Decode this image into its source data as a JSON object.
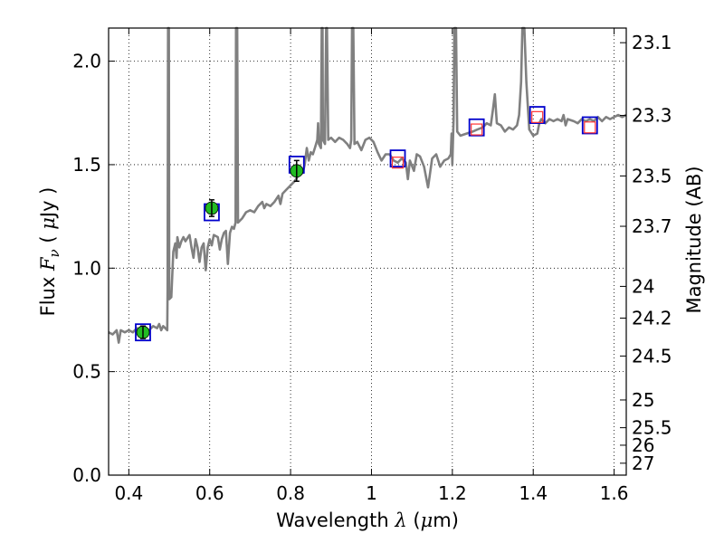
{
  "chart_data": {
    "type": "line",
    "xlabel_text": "Wavelength",
    "xlabel_symbol": "λ",
    "xlabel_unit_open": "(",
    "xlabel_unit_mu": "μ",
    "xlabel_unit_rest": "m)",
    "ylabel_text": "Flux",
    "ylabel_symbol": "F",
    "ylabel_sub": "ν",
    "ylabel_unit_open": "(",
    "ylabel_unit_mu": "μ",
    "ylabel_unit_rest": "Jy",
    "ylabel_unit_close": ")",
    "y2label": "Magnitude (AB)",
    "xlim": [
      0.35,
      1.63
    ],
    "ylim": [
      0.0,
      2.16
    ],
    "grid": true,
    "x_ticks": [
      {
        "v": 0.4,
        "label": "0.4"
      },
      {
        "v": 0.6,
        "label": "0.6"
      },
      {
        "v": 0.8,
        "label": "0.8"
      },
      {
        "v": 1.0,
        "label": "1"
      },
      {
        "v": 1.2,
        "label": "1.2"
      },
      {
        "v": 1.4,
        "label": "1.4"
      },
      {
        "v": 1.6,
        "label": "1.6"
      }
    ],
    "y_ticks": [
      {
        "v": 0.0,
        "label": "0.0"
      },
      {
        "v": 0.5,
        "label": "0.5"
      },
      {
        "v": 1.0,
        "label": "1.0"
      },
      {
        "v": 1.5,
        "label": "1.5"
      },
      {
        "v": 2.0,
        "label": "2.0"
      }
    ],
    "mag_ticks": [
      {
        "mag": 23.1,
        "label": "23.1"
      },
      {
        "mag": 23.3,
        "label": "23.3"
      },
      {
        "mag": 23.5,
        "label": "23.5"
      },
      {
        "mag": 23.7,
        "label": "23.7"
      },
      {
        "mag": 24.0,
        "label": "24"
      },
      {
        "mag": 24.2,
        "label": "24.2"
      },
      {
        "mag": 24.5,
        "label": "24.5"
      },
      {
        "mag": 25.0,
        "label": "25"
      },
      {
        "mag": 25.5,
        "label": "25.5"
      },
      {
        "mag": 26.0,
        "label": "26"
      },
      {
        "mag": 27.0,
        "label": "27"
      }
    ],
    "spectrum": {
      "color": "#808080",
      "points": [
        [
          0.35,
          0.69
        ],
        [
          0.36,
          0.68
        ],
        [
          0.37,
          0.7
        ],
        [
          0.375,
          0.64
        ],
        [
          0.38,
          0.7
        ],
        [
          0.39,
          0.69
        ],
        [
          0.4,
          0.7
        ],
        [
          0.41,
          0.69
        ],
        [
          0.42,
          0.71
        ],
        [
          0.43,
          0.7
        ],
        [
          0.44,
          0.71
        ],
        [
          0.45,
          0.7
        ],
        [
          0.46,
          0.72
        ],
        [
          0.47,
          0.71
        ],
        [
          0.475,
          0.73
        ],
        [
          0.48,
          0.7
        ],
        [
          0.485,
          0.72
        ],
        [
          0.49,
          0.71
        ],
        [
          0.495,
          0.7
        ],
        [
          0.496,
          0.9
        ],
        [
          0.497,
          2.16
        ],
        [
          0.499,
          2.16
        ],
        [
          0.5,
          0.85
        ],
        [
          0.505,
          0.86
        ],
        [
          0.51,
          1.08
        ],
        [
          0.515,
          1.12
        ],
        [
          0.518,
          1.05
        ],
        [
          0.52,
          1.15
        ],
        [
          0.525,
          1.1
        ],
        [
          0.53,
          1.13
        ],
        [
          0.535,
          1.15
        ],
        [
          0.54,
          1.13
        ],
        [
          0.55,
          1.16
        ],
        [
          0.555,
          1.1
        ],
        [
          0.56,
          1.05
        ],
        [
          0.565,
          1.14
        ],
        [
          0.57,
          1.1
        ],
        [
          0.575,
          1.03
        ],
        [
          0.58,
          1.1
        ],
        [
          0.585,
          1.12
        ],
        [
          0.59,
          0.99
        ],
        [
          0.595,
          1.1
        ],
        [
          0.6,
          1.14
        ],
        [
          0.605,
          1.11
        ],
        [
          0.61,
          1.16
        ],
        [
          0.62,
          1.15
        ],
        [
          0.625,
          1.09
        ],
        [
          0.63,
          1.14
        ],
        [
          0.635,
          1.17
        ],
        [
          0.64,
          1.18
        ],
        [
          0.645,
          1.02
        ],
        [
          0.65,
          1.17
        ],
        [
          0.655,
          1.2
        ],
        [
          0.66,
          1.19
        ],
        [
          0.664,
          1.22
        ],
        [
          0.665,
          2.16
        ],
        [
          0.668,
          2.16
        ],
        [
          0.67,
          1.22
        ],
        [
          0.68,
          1.24
        ],
        [
          0.69,
          1.27
        ],
        [
          0.7,
          1.28
        ],
        [
          0.71,
          1.27
        ],
        [
          0.72,
          1.3
        ],
        [
          0.73,
          1.32
        ],
        [
          0.735,
          1.29
        ],
        [
          0.74,
          1.31
        ],
        [
          0.75,
          1.3
        ],
        [
          0.76,
          1.32
        ],
        [
          0.77,
          1.35
        ],
        [
          0.775,
          1.31
        ],
        [
          0.78,
          1.36
        ],
        [
          0.79,
          1.38
        ],
        [
          0.8,
          1.4
        ],
        [
          0.81,
          1.42
        ],
        [
          0.82,
          1.45
        ],
        [
          0.83,
          1.46
        ],
        [
          0.835,
          1.5
        ],
        [
          0.84,
          1.58
        ],
        [
          0.845,
          1.52
        ],
        [
          0.85,
          1.56
        ],
        [
          0.855,
          1.55
        ],
        [
          0.86,
          1.58
        ],
        [
          0.866,
          1.62
        ],
        [
          0.868,
          1.7
        ],
        [
          0.87,
          1.6
        ],
        [
          0.875,
          1.58
        ],
        [
          0.877,
          2.16
        ],
        [
          0.879,
          2.16
        ],
        [
          0.88,
          1.62
        ],
        [
          0.885,
          1.6
        ],
        [
          0.888,
          2.16
        ],
        [
          0.89,
          2.16
        ],
        [
          0.893,
          1.62
        ],
        [
          0.9,
          1.63
        ],
        [
          0.91,
          1.61
        ],
        [
          0.92,
          1.63
        ],
        [
          0.93,
          1.62
        ],
        [
          0.94,
          1.6
        ],
        [
          0.947,
          1.58
        ],
        [
          0.95,
          1.62
        ],
        [
          0.952,
          2.16
        ],
        [
          0.955,
          2.16
        ],
        [
          0.958,
          1.6
        ],
        [
          0.965,
          1.61
        ],
        [
          0.975,
          1.57
        ],
        [
          0.985,
          1.62
        ],
        [
          0.995,
          1.63
        ],
        [
          1.005,
          1.61
        ],
        [
          1.015,
          1.56
        ],
        [
          1.025,
          1.52
        ],
        [
          1.035,
          1.55
        ],
        [
          1.045,
          1.55
        ],
        [
          1.055,
          1.52
        ],
        [
          1.065,
          1.51
        ],
        [
          1.075,
          1.53
        ],
        [
          1.085,
          1.51
        ],
        [
          1.09,
          1.43
        ],
        [
          1.095,
          1.52
        ],
        [
          1.105,
          1.47
        ],
        [
          1.112,
          1.55
        ],
        [
          1.12,
          1.54
        ],
        [
          1.13,
          1.49
        ],
        [
          1.14,
          1.39
        ],
        [
          1.15,
          1.53
        ],
        [
          1.16,
          1.55
        ],
        [
          1.17,
          1.49
        ],
        [
          1.18,
          1.52
        ],
        [
          1.19,
          1.53
        ],
        [
          1.196,
          1.55
        ],
        [
          1.198,
          1.65
        ],
        [
          1.2,
          1.5
        ],
        [
          1.203,
          1.72
        ],
        [
          1.205,
          2.16
        ],
        [
          1.209,
          2.16
        ],
        [
          1.212,
          1.66
        ],
        [
          1.22,
          1.64
        ],
        [
          1.235,
          1.65
        ],
        [
          1.25,
          1.66
        ],
        [
          1.262,
          1.67
        ],
        [
          1.275,
          1.68
        ],
        [
          1.285,
          1.7
        ],
        [
          1.295,
          1.69
        ],
        [
          1.3,
          1.76
        ],
        [
          1.305,
          1.84
        ],
        [
          1.31,
          1.7
        ],
        [
          1.32,
          1.69
        ],
        [
          1.33,
          1.66
        ],
        [
          1.34,
          1.68
        ],
        [
          1.35,
          1.67
        ],
        [
          1.36,
          1.69
        ],
        [
          1.365,
          1.74
        ],
        [
          1.37,
          1.9
        ],
        [
          1.373,
          2.16
        ],
        [
          1.378,
          2.16
        ],
        [
          1.383,
          1.9
        ],
        [
          1.39,
          1.67
        ],
        [
          1.4,
          1.64
        ],
        [
          1.41,
          1.65
        ],
        [
          1.415,
          1.7
        ],
        [
          1.42,
          1.72
        ],
        [
          1.43,
          1.7
        ],
        [
          1.44,
          1.72
        ],
        [
          1.45,
          1.71
        ],
        [
          1.46,
          1.72
        ],
        [
          1.47,
          1.71
        ],
        [
          1.475,
          1.74
        ],
        [
          1.48,
          1.69
        ],
        [
          1.485,
          1.72
        ],
        [
          1.5,
          1.71
        ],
        [
          1.51,
          1.7
        ],
        [
          1.52,
          1.72
        ],
        [
          1.53,
          1.71
        ],
        [
          1.54,
          1.72
        ],
        [
          1.55,
          1.71
        ],
        [
          1.56,
          1.73
        ],
        [
          1.57,
          1.71
        ],
        [
          1.58,
          1.73
        ],
        [
          1.59,
          1.72
        ],
        [
          1.6,
          1.73
        ],
        [
          1.61,
          1.74
        ],
        [
          1.62,
          1.73
        ],
        [
          1.63,
          1.74
        ]
      ]
    },
    "blue_squares": {
      "color": "#0000cc",
      "points": [
        [
          0.435,
          0.69
        ],
        [
          0.605,
          1.27
        ],
        [
          0.815,
          1.5
        ],
        [
          1.065,
          1.53
        ],
        [
          1.26,
          1.68
        ],
        [
          1.41,
          1.74
        ],
        [
          1.54,
          1.69
        ]
      ]
    },
    "red_squares": {
      "color": "#ff3333",
      "points": [
        [
          1.065,
          1.51
        ],
        [
          1.26,
          1.67
        ],
        [
          1.41,
          1.73
        ],
        [
          1.54,
          1.68
        ]
      ]
    },
    "green_points": {
      "color": "#22bb22",
      "points": [
        {
          "x": 0.435,
          "y": 0.69,
          "err": 0.03
        },
        {
          "x": 0.605,
          "y": 1.29,
          "err": 0.04
        },
        {
          "x": 0.815,
          "y": 1.47,
          "err": 0.05
        }
      ]
    }
  }
}
